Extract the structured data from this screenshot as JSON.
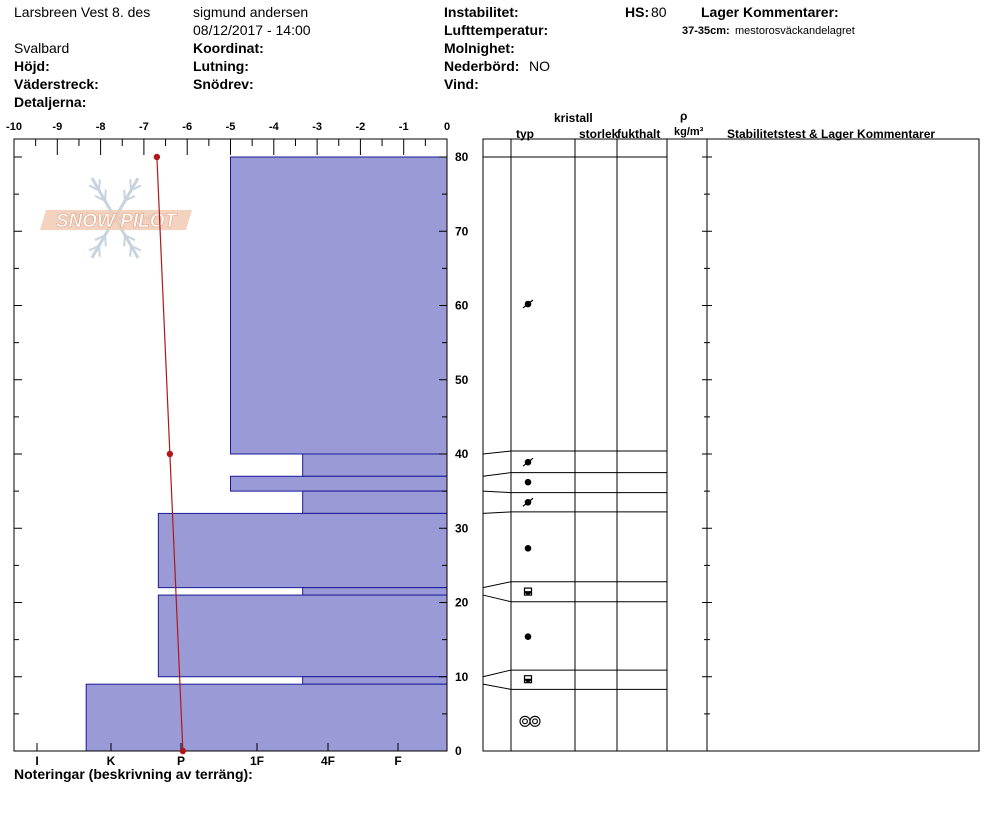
{
  "header": {
    "location": "Larsbreen Vest 8. des",
    "region": "Svalbard",
    "observer": "sigmund andersen",
    "datetime": "08/12/2017 - 14:00",
    "labels": {
      "hojd": "Höjd:",
      "vaderstreck": "Väderstreck:",
      "detaljerna": "Detaljerna:",
      "koordinat": "Koordinat:",
      "lutning": "Lutning:",
      "snodrev": "Snödrev:",
      "instabilitet": "Instabilitet:",
      "lufttemperatur": "Lufttemperatur:",
      "molnighet": "Molnighet:",
      "nederbord": "Nederbörd:",
      "vind": "Vind:",
      "hs": "HS:",
      "lager_kommentarer": "Lager Kommentarer:"
    },
    "values": {
      "nederbord": "NO",
      "hs": "80"
    },
    "layer_comment": {
      "range": "37-35cm:",
      "text": "mestorosväckandelagret"
    }
  },
  "footer": {
    "notes_label": "Noteringar (beskrivning av terräng):"
  },
  "watermark": {
    "text": "SNOW PILOT"
  },
  "right_panel": {
    "col_typ": "typ",
    "col_kristall": "kristall",
    "col_storlek": "storlek",
    "col_fukthalt": "fukthalt",
    "col_rho": "ρ",
    "col_density_unit": "kg/m³",
    "col_stability": "Stabilitetstest & Lager Kommentarer"
  },
  "chart_data": {
    "type": "snow_profile",
    "temperature_axis": {
      "ticks": [
        "-10",
        "-9",
        "-8",
        "-7",
        "-6",
        "-5",
        "-4",
        "-3",
        "-2",
        "-1",
        "0"
      ],
      "range": [
        -10,
        0
      ]
    },
    "height_axis": {
      "ticks": [
        "80",
        "70",
        "60",
        "50",
        "40",
        "30",
        "20",
        "10",
        "0"
      ],
      "range": [
        0,
        80
      ],
      "unit": "cm"
    },
    "hardness_axis": {
      "ticks": [
        "I",
        "K",
        "P",
        "1F",
        "4F",
        "F"
      ]
    },
    "hardness_layers": [
      {
        "top": 80,
        "bottom": 40,
        "hardness": "1F",
        "hardness_value": 3.0
      },
      {
        "top": 40,
        "bottom": 37,
        "hardness": "4F",
        "hardness_value": 2.0
      },
      {
        "top": 37,
        "bottom": 35,
        "hardness": "1F",
        "hardness_value": 3.0
      },
      {
        "top": 35,
        "bottom": 32,
        "hardness": "4F",
        "hardness_value": 2.0
      },
      {
        "top": 32,
        "bottom": 22,
        "hardness": "P",
        "hardness_value": 4.0
      },
      {
        "top": 22,
        "bottom": 21,
        "hardness": "4F",
        "hardness_value": 2.0
      },
      {
        "top": 21,
        "bottom": 10,
        "hardness": "P",
        "hardness_value": 4.0
      },
      {
        "top": 10,
        "bottom": 9,
        "hardness": "4F",
        "hardness_value": 2.0
      },
      {
        "top": 9,
        "bottom": 0,
        "hardness": "K",
        "hardness_value": 5.0
      }
    ],
    "temperature_profile": [
      {
        "height": 80,
        "temp": -6.7
      },
      {
        "height": 40,
        "temp": -6.4
      },
      {
        "height": 0,
        "temp": -6.1
      }
    ],
    "layer_boundaries": [
      80,
      40,
      37,
      35,
      32,
      22,
      21,
      10,
      9,
      0
    ],
    "grain_symbols": [
      {
        "height": 60.2,
        "symbol": "decomposing"
      },
      {
        "height": 38.9,
        "symbol": "decomposing"
      },
      {
        "height": 36.2,
        "symbol": "rounded"
      },
      {
        "height": 33.5,
        "symbol": "decomposing"
      },
      {
        "height": 27.3,
        "symbol": "rounded"
      },
      {
        "height": 21.4,
        "symbol": "mixed"
      },
      {
        "height": 15.4,
        "symbol": "rounded"
      },
      {
        "height": 9.6,
        "symbol": "mixed"
      },
      {
        "height": 4.0,
        "symbol": "melt_forms"
      }
    ]
  }
}
